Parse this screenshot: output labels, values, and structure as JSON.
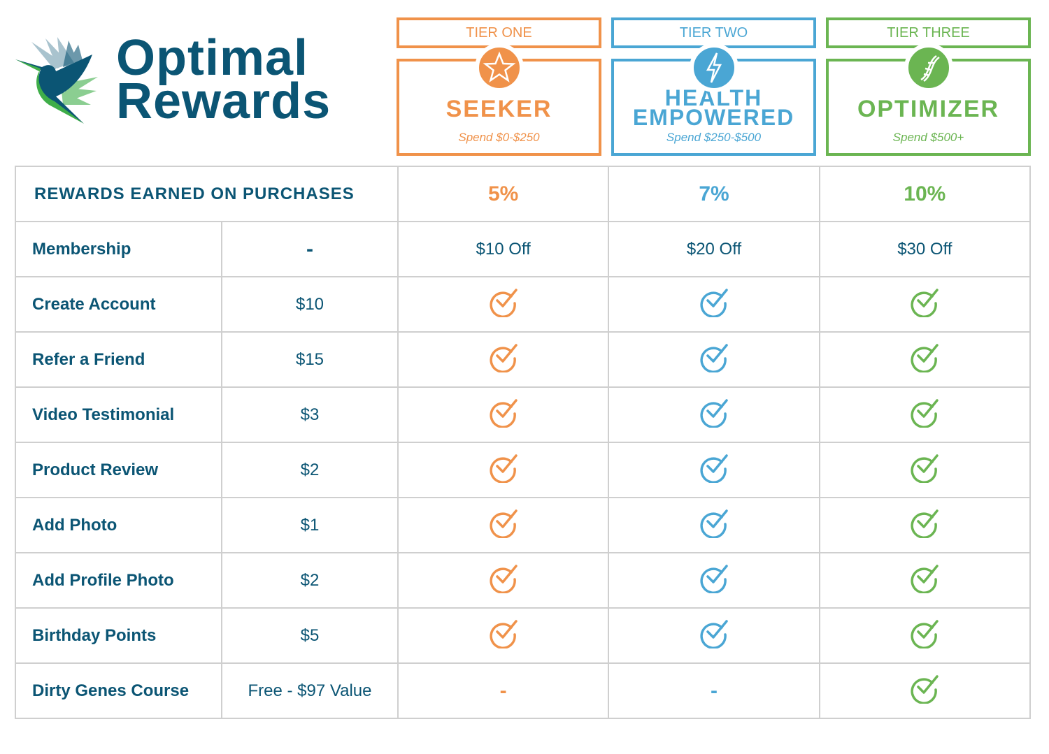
{
  "logo": {
    "line1": "Optimal",
    "line2": "Rewards"
  },
  "colors": {
    "navy": "#0b5574",
    "orange": "#f0924a",
    "blue": "#4aa6d4",
    "green": "#6bb552",
    "grid": "#cfcfcf"
  },
  "tiers": [
    {
      "tier": "TIER ONE",
      "name": "SEEKER",
      "spend": "Spend $0-$250",
      "icon": "star-icon",
      "color": "#f0924a",
      "rate": "5%",
      "membership": "$10 Off"
    },
    {
      "tier": "TIER TWO",
      "name": "HEALTH EMPOWERED",
      "spend": "Spend $250-$500",
      "icon": "lightning-icon",
      "color": "#4aa6d4",
      "rate": "7%",
      "membership": "$20 Off"
    },
    {
      "tier": "TIER THREE",
      "name": "OPTIMIZER",
      "spend": "Spend $500+",
      "icon": "dna-icon",
      "color": "#6bb552",
      "rate": "10%",
      "membership": "$30 Off"
    }
  ],
  "table": {
    "header": "REWARDS EARNED ON PURCHASES",
    "membership": {
      "label": "Membership",
      "value": "-"
    },
    "rows": [
      {
        "label": "Create Account",
        "value": "$10",
        "tiers": [
          true,
          true,
          true
        ]
      },
      {
        "label": "Refer a Friend",
        "value": "$15",
        "tiers": [
          true,
          true,
          true
        ]
      },
      {
        "label": "Video Testimonial",
        "value": "$3",
        "tiers": [
          true,
          true,
          true
        ]
      },
      {
        "label": "Product Review",
        "value": "$2",
        "tiers": [
          true,
          true,
          true
        ]
      },
      {
        "label": "Add Photo",
        "value": "$1",
        "tiers": [
          true,
          true,
          true
        ]
      },
      {
        "label": "Add Profile Photo",
        "value": "$2",
        "tiers": [
          true,
          true,
          true
        ]
      },
      {
        "label": "Birthday Points",
        "value": "$5",
        "tiers": [
          true,
          true,
          true
        ]
      },
      {
        "label": "Dirty Genes Course",
        "value": "Free - $97 Value",
        "tiers": [
          false,
          false,
          true
        ]
      }
    ],
    "unavailable": "-"
  }
}
